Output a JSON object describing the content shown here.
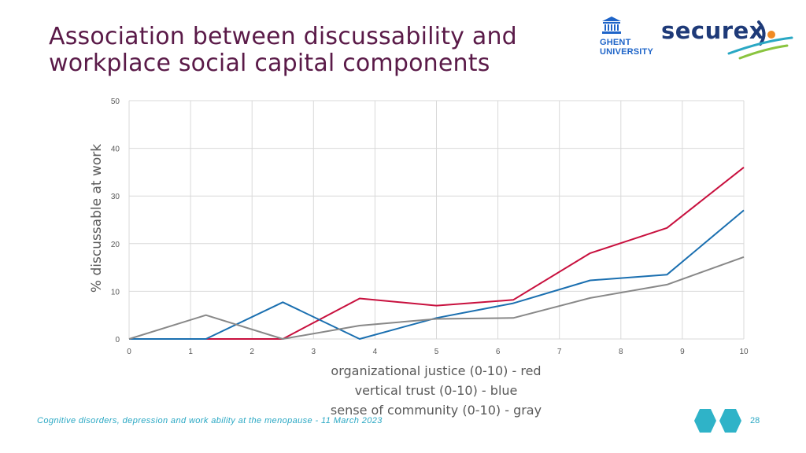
{
  "slide": {
    "title_line1": "Association between discussability and",
    "title_line2": "workplace social capital components",
    "footer": "Cognitive disorders, depression and work ability at the menopause  - 11 March 2023",
    "page_number": "28"
  },
  "logos": {
    "ghent": {
      "line1": "GHENT",
      "line2": "UNIVERSITY",
      "icon": "building-icon",
      "color": "#1e64c8"
    },
    "securex": {
      "text": "securex",
      "color": "#1e3a78",
      "accent_color": "#f08a24",
      "swoosh_colors": [
        "#2aa8c4",
        "#8ac43f"
      ]
    }
  },
  "decor": {
    "hex_colors": [
      "#2fb3c8",
      "#2fb3c8"
    ]
  },
  "chart_data": {
    "type": "line",
    "ylabel": "% discussable at work",
    "legend_lines": [
      "organizational justice (0-10) - red",
      "vertical trust (0-10) - blue",
      "sense of community (0-10) - gray"
    ],
    "x_ticks": [
      "0",
      "1",
      "2",
      "3",
      "4",
      "5",
      "6",
      "7",
      "8",
      "9",
      "10"
    ],
    "y_ticks": [
      "0",
      "10",
      "20",
      "30",
      "40",
      "50"
    ],
    "xlim": [
      0,
      10
    ],
    "ylim": [
      0,
      50
    ],
    "grid": true,
    "series": [
      {
        "color": "#c8103e",
        "x": [
          0,
          1.25,
          2.5,
          3.75,
          5,
          6.25,
          7.5,
          8.75,
          10
        ],
        "y": [
          0,
          0,
          0,
          8.5,
          7,
          8.2,
          18,
          23.3,
          36
        ]
      },
      {
        "color": "#1a6fb0",
        "x": [
          0,
          1.25,
          2.5,
          3.75,
          5,
          6.25,
          7.5,
          8.75,
          10
        ],
        "y": [
          0,
          0,
          7.7,
          0,
          4.4,
          7.5,
          12.3,
          13.5,
          27
        ]
      },
      {
        "color": "#888888",
        "x": [
          0,
          1.25,
          2.5,
          3.75,
          5,
          6.25,
          7.5,
          8.75,
          10
        ],
        "y": [
          0,
          5,
          0,
          2.8,
          4.2,
          4.4,
          8.6,
          11.4,
          17.2
        ]
      }
    ]
  }
}
